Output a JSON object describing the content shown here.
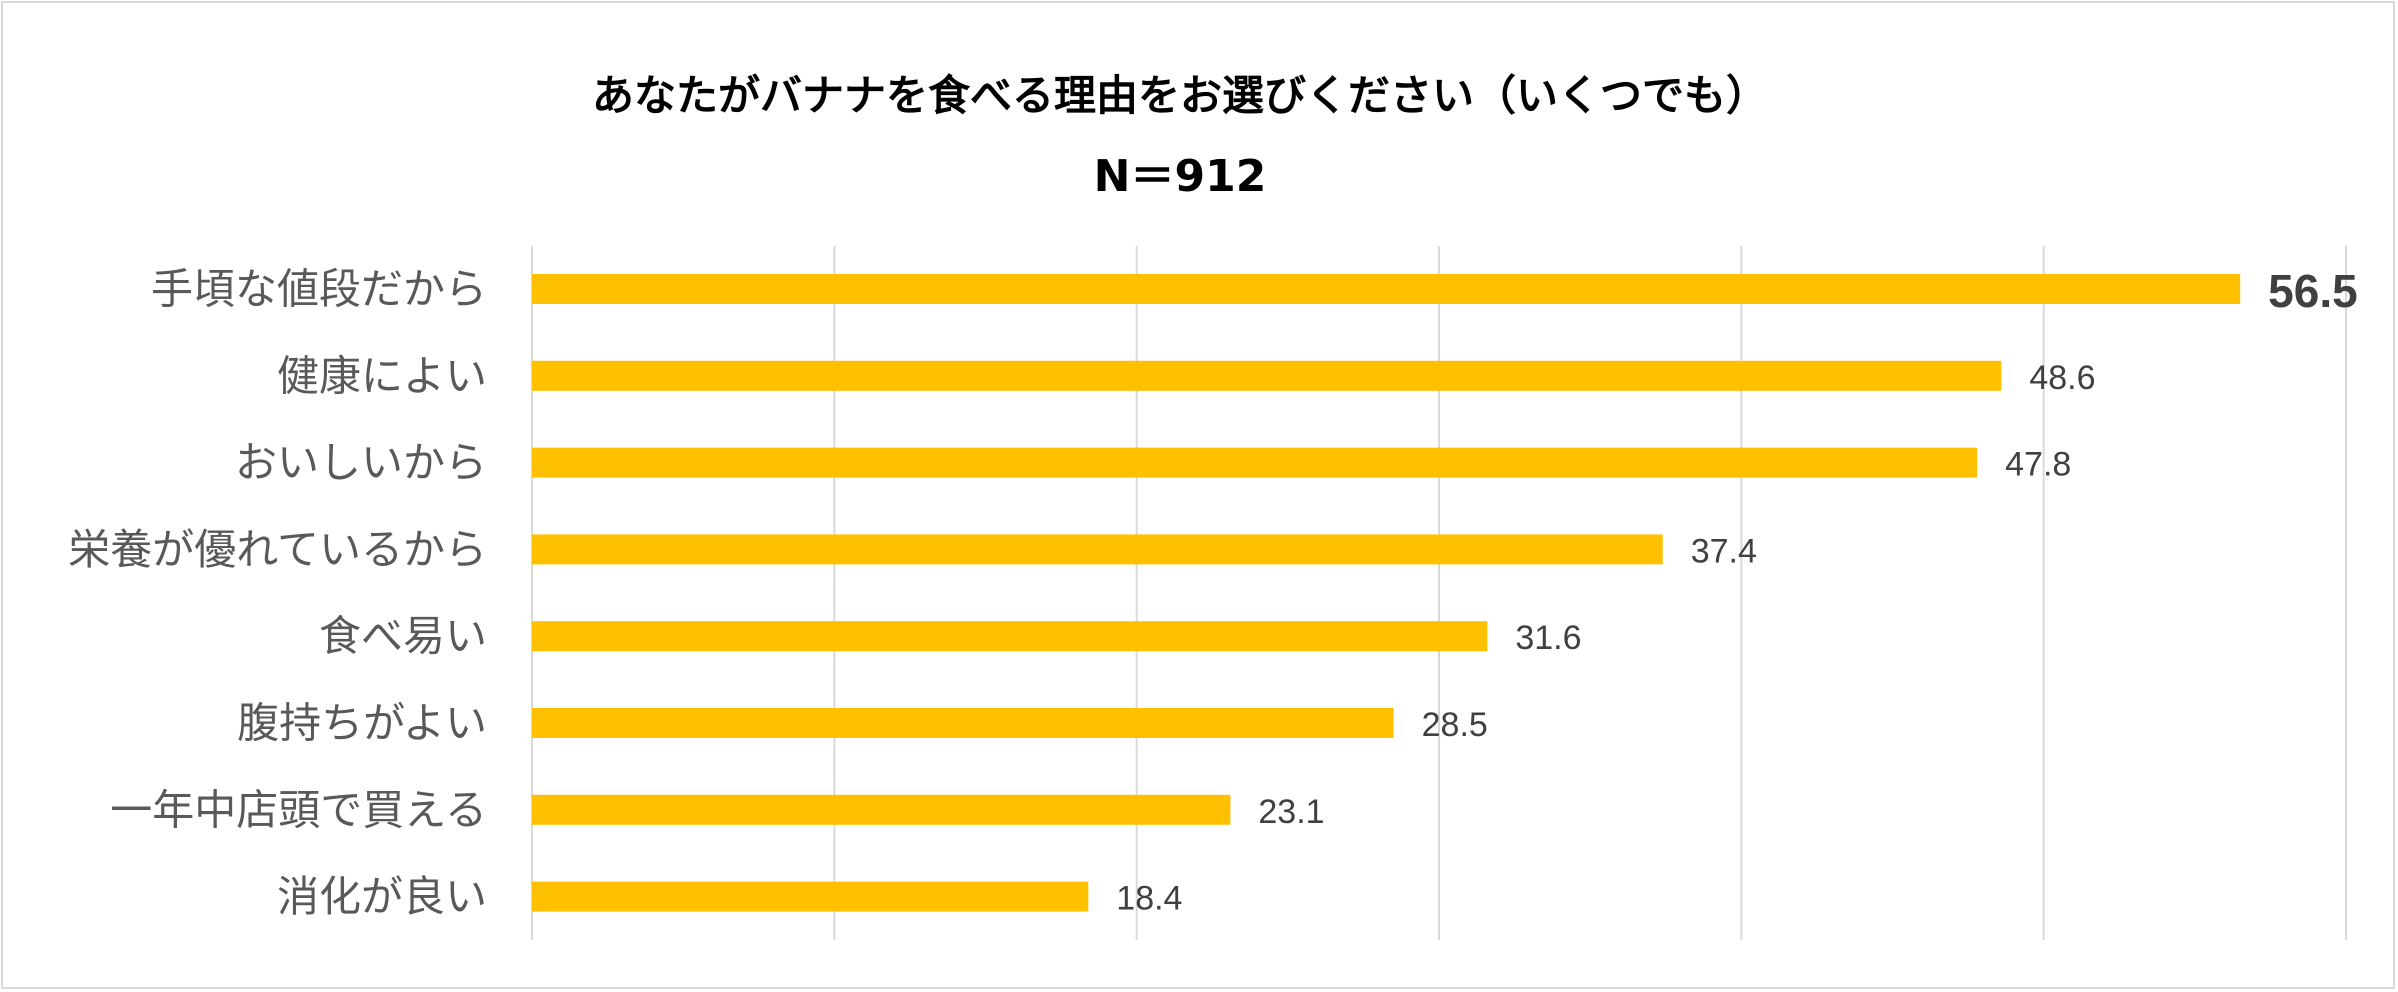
{
  "chart_data": {
    "type": "bar",
    "orientation": "horizontal",
    "title": "あなたがバナナを食べる理由をお選びください（いくつでも）",
    "subtitle": "N＝912",
    "categories": [
      "手頃な値段だから",
      "健康によい",
      "おいしいから",
      "栄養が優れているから",
      "食べ易い",
      "腹持ちがよい",
      "一年中店頭で買える",
      "消化が良い"
    ],
    "values": [
      56.5,
      48.6,
      47.8,
      37.4,
      31.6,
      28.5,
      23.1,
      18.4
    ],
    "value_labels": [
      "56.5",
      "48.6",
      "47.8",
      "37.4",
      "31.6",
      "28.5",
      "23.1",
      "18.4"
    ],
    "xlim": [
      0,
      60
    ],
    "grid_step": 10,
    "grid": true,
    "xlabel": "",
    "ylabel": "",
    "highlight_first_label": true,
    "colors": {
      "bar": "#FFC000",
      "grid": "#D9D9D9",
      "category_text": "#595959",
      "value_text": "#404040"
    }
  }
}
